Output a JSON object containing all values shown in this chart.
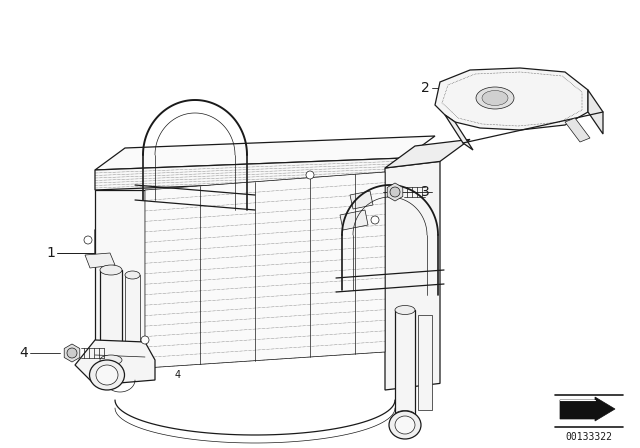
{
  "bg_color": "#ffffff",
  "line_color": "#1a1a1a",
  "diagram_id": "00133322",
  "lw_main": 0.9,
  "lw_thin": 0.5,
  "lw_dot": 0.4,
  "fig_w": 6.4,
  "fig_h": 4.48,
  "dpi": 100
}
